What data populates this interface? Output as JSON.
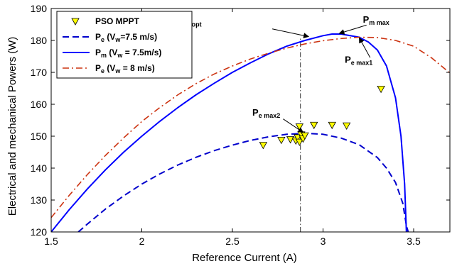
{
  "chart_data": {
    "type": "line",
    "xlabel": "Reference Current (A)",
    "ylabel": "Electrical and mechanical Powers (W)",
    "xlim": [
      1.5,
      3.7
    ],
    "ylim": [
      120,
      190
    ],
    "xticks": [
      1.5,
      2,
      2.5,
      3,
      3.5
    ],
    "yticks": [
      120,
      130,
      140,
      150,
      160,
      170,
      180,
      190
    ],
    "grid": false,
    "legend_placement": "top-left",
    "series": [
      {
        "key": "pso",
        "kind": "marker",
        "color": "#ffff00",
        "legend": {
          "main": "PSO MPPT",
          "sub": "",
          "mid": "",
          "sub2": "",
          "tail": ""
        },
        "points": [
          [
            2.67,
            147.2
          ],
          [
            2.77,
            148.8
          ],
          [
            2.82,
            149.0
          ],
          [
            2.85,
            148.6
          ],
          [
            2.86,
            149.6
          ],
          [
            2.87,
            148.2
          ],
          [
            2.88,
            150.5
          ],
          [
            2.89,
            149.2
          ],
          [
            2.9,
            150.2
          ],
          [
            2.87,
            153.0
          ],
          [
            2.95,
            153.5
          ],
          [
            3.05,
            153.5
          ],
          [
            3.13,
            153.3
          ],
          [
            3.32,
            164.8
          ]
        ]
      },
      {
        "key": "pe75",
        "kind": "dashed",
        "color": "#0000cc",
        "legend": {
          "main": "P",
          "sub": "e",
          "mid": " (V",
          "sub2": "w",
          "tail": "=7.5 m/s)"
        },
        "points": [
          [
            1.65,
            120.0
          ],
          [
            1.7,
            122.5
          ],
          [
            1.8,
            127.2
          ],
          [
            1.9,
            131.3
          ],
          [
            2.0,
            135.0
          ],
          [
            2.1,
            138.2
          ],
          [
            2.2,
            141.0
          ],
          [
            2.3,
            143.4
          ],
          [
            2.4,
            145.5
          ],
          [
            2.5,
            147.2
          ],
          [
            2.6,
            148.7
          ],
          [
            2.7,
            149.8
          ],
          [
            2.8,
            150.6
          ],
          [
            2.9,
            150.9
          ],
          [
            3.0,
            150.6
          ],
          [
            3.1,
            149.4
          ],
          [
            3.2,
            147.3
          ],
          [
            3.3,
            143.3
          ],
          [
            3.35,
            140.0
          ],
          [
            3.4,
            135.5
          ],
          [
            3.44,
            129.0
          ],
          [
            3.46,
            122.0
          ],
          [
            3.47,
            120.0
          ]
        ]
      },
      {
        "key": "pm75",
        "kind": "solid",
        "color": "#0000ff",
        "legend": {
          "main": "P",
          "sub": "m",
          "mid": " (V",
          "sub2": "w",
          "tail": " = 7.5m/s)"
        },
        "points": [
          [
            1.5,
            120.0
          ],
          [
            1.6,
            127.0
          ],
          [
            1.7,
            133.5
          ],
          [
            1.8,
            139.5
          ],
          [
            1.9,
            145.0
          ],
          [
            2.0,
            150.0
          ],
          [
            2.1,
            154.7
          ],
          [
            2.2,
            159.0
          ],
          [
            2.3,
            163.0
          ],
          [
            2.4,
            166.6
          ],
          [
            2.5,
            170.0
          ],
          [
            2.6,
            173.0
          ],
          [
            2.7,
            175.8
          ],
          [
            2.8,
            178.2
          ],
          [
            2.9,
            180.0
          ],
          [
            3.0,
            181.5
          ],
          [
            3.05,
            182.0
          ],
          [
            3.1,
            182.0
          ],
          [
            3.2,
            181.0
          ],
          [
            3.25,
            179.5
          ],
          [
            3.3,
            177.0
          ],
          [
            3.35,
            172.0
          ],
          [
            3.4,
            162.0
          ],
          [
            3.43,
            150.0
          ],
          [
            3.45,
            135.0
          ],
          [
            3.46,
            120.0
          ]
        ]
      },
      {
        "key": "pe8",
        "kind": "dashdot",
        "color": "#cc3311",
        "legend": {
          "main": "P",
          "sub": "e",
          "mid": " (V",
          "sub2": "w",
          "tail": " = 8 m/s)"
        },
        "points": [
          [
            1.5,
            124.5
          ],
          [
            1.6,
            131.5
          ],
          [
            1.7,
            138.0
          ],
          [
            1.8,
            144.0
          ],
          [
            1.9,
            149.5
          ],
          [
            2.0,
            154.6
          ],
          [
            2.1,
            159.0
          ],
          [
            2.2,
            163.0
          ],
          [
            2.3,
            166.5
          ],
          [
            2.4,
            169.5
          ],
          [
            2.5,
            172.0
          ],
          [
            2.6,
            174.2
          ],
          [
            2.7,
            176.0
          ],
          [
            2.8,
            177.6
          ],
          [
            2.9,
            178.9
          ],
          [
            3.0,
            179.9
          ],
          [
            3.1,
            180.6
          ],
          [
            3.2,
            181.0
          ],
          [
            3.3,
            180.9
          ],
          [
            3.4,
            180.0
          ],
          [
            3.5,
            178.2
          ],
          [
            3.6,
            174.5
          ],
          [
            3.7,
            169.8
          ]
        ]
      }
    ],
    "annotations": [
      {
        "key": "pmopt",
        "main": "P",
        "sub": "m opt",
        "at": [
          2.2,
          185.0
        ],
        "arrow_from": [
          2.72,
          183.6
        ],
        "arrow_to": [
          2.92,
          181.2
        ]
      },
      {
        "key": "pmmax",
        "main": "P",
        "sub": "m max",
        "at": [
          3.22,
          185.6
        ],
        "arrow_from": [
          3.24,
          184.8
        ],
        "arrow_to": [
          3.09,
          182.2
        ]
      },
      {
        "key": "pemax1",
        "main": "P",
        "sub": "e max1",
        "at": [
          3.12,
          173.0
        ],
        "arrow_from": [
          3.26,
          174.6
        ],
        "arrow_to": [
          3.2,
          180.8
        ]
      },
      {
        "key": "pemax2",
        "main": "P",
        "sub": "e max2",
        "at": [
          2.61,
          156.4
        ],
        "arrow_from": [
          2.78,
          155.4
        ],
        "arrow_to": [
          2.89,
          151.2
        ]
      }
    ],
    "vline": {
      "x": 2.875,
      "from": 120,
      "to": 181.0,
      "color": "#555555"
    }
  }
}
